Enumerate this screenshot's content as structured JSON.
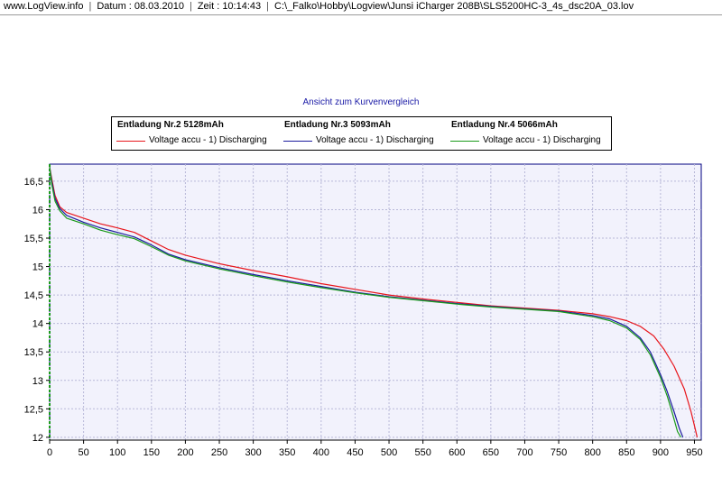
{
  "window": {
    "segments": [
      "www.LogView.info",
      "Datum : 08.03.2010",
      "Zeit : 10:14:43",
      "C:\\_Falko\\Hobby\\Logview\\Junsi iCharger 208B\\SLS5200HC-3_4s_dsc20A_03.lov"
    ]
  },
  "chart_data": {
    "type": "line",
    "title": "Ansicht zum Kurvenvergleich",
    "xlabel": "",
    "ylabel": "",
    "xlim": [
      0,
      960
    ],
    "ylim": [
      11.95,
      16.8
    ],
    "x_ticks": [
      0,
      50,
      100,
      150,
      200,
      250,
      300,
      350,
      400,
      450,
      500,
      550,
      600,
      650,
      700,
      750,
      800,
      850,
      900,
      950
    ],
    "y_ticks": [
      12,
      12.5,
      13,
      13.5,
      14,
      14.5,
      15,
      15.5,
      16,
      16.5
    ],
    "y_tick_labels": [
      "12",
      "12,5",
      "13",
      "13,5",
      "14",
      "14,5",
      "15",
      "15,5",
      "16",
      "16,5"
    ],
    "grid": true,
    "legend_position": "top",
    "series": [
      {
        "name": "Entladung Nr.2 5128mAh",
        "label": "Voltage accu - 1) Discharging",
        "color": "#e8161c",
        "x": [
          0,
          3,
          8,
          15,
          25,
          50,
          75,
          100,
          125,
          150,
          175,
          200,
          250,
          300,
          350,
          400,
          450,
          500,
          550,
          600,
          650,
          700,
          750,
          800,
          825,
          850,
          870,
          890,
          905,
          920,
          935,
          945,
          950,
          954
        ],
        "y": [
          16.75,
          16.55,
          16.25,
          16.05,
          15.95,
          15.85,
          15.75,
          15.68,
          15.6,
          15.45,
          15.3,
          15.2,
          15.05,
          14.93,
          14.82,
          14.7,
          14.6,
          14.5,
          14.43,
          14.37,
          14.31,
          14.27,
          14.23,
          14.17,
          14.12,
          14.05,
          13.95,
          13.78,
          13.55,
          13.25,
          12.85,
          12.45,
          12.2,
          12.0
        ]
      },
      {
        "name": "Entladung Nr.3 5093mAh",
        "label": "Voltage accu - 1) Discharging",
        "color": "#1c1c9e",
        "x": [
          0,
          3,
          8,
          15,
          25,
          50,
          75,
          100,
          125,
          150,
          175,
          200,
          250,
          300,
          350,
          400,
          450,
          500,
          550,
          600,
          650,
          700,
          750,
          800,
          825,
          850,
          870,
          885,
          900,
          910,
          920,
          928,
          933
        ],
        "y": [
          16.75,
          16.5,
          16.2,
          16.02,
          15.9,
          15.78,
          15.68,
          15.6,
          15.52,
          15.38,
          15.22,
          15.12,
          14.98,
          14.86,
          14.75,
          14.65,
          14.55,
          14.47,
          14.41,
          14.35,
          14.3,
          14.26,
          14.22,
          14.14,
          14.08,
          13.95,
          13.75,
          13.5,
          13.1,
          12.8,
          12.45,
          12.15,
          12.0
        ]
      },
      {
        "name": "Entladung Nr.4 5066mAh",
        "label": "Voltage accu - 1) Discharging",
        "color": "#1a9a1a",
        "x": [
          0,
          3,
          8,
          15,
          25,
          50,
          75,
          100,
          125,
          150,
          175,
          200,
          250,
          300,
          350,
          400,
          450,
          500,
          550,
          600,
          650,
          700,
          750,
          800,
          825,
          850,
          870,
          885,
          900,
          910,
          918,
          925,
          930
        ],
        "y": [
          16.75,
          16.45,
          16.15,
          15.98,
          15.85,
          15.75,
          15.64,
          15.56,
          15.49,
          15.35,
          15.2,
          15.1,
          14.96,
          14.84,
          14.73,
          14.63,
          14.54,
          14.46,
          14.4,
          14.34,
          14.29,
          14.25,
          14.21,
          14.12,
          14.05,
          13.92,
          13.72,
          13.45,
          13.05,
          12.72,
          12.4,
          12.1,
          12.0
        ]
      }
    ]
  },
  "colors": {
    "plot_bg": "#f2f2fc",
    "grid": "#b8b8d8",
    "y_axis": "#1a9a1a"
  }
}
